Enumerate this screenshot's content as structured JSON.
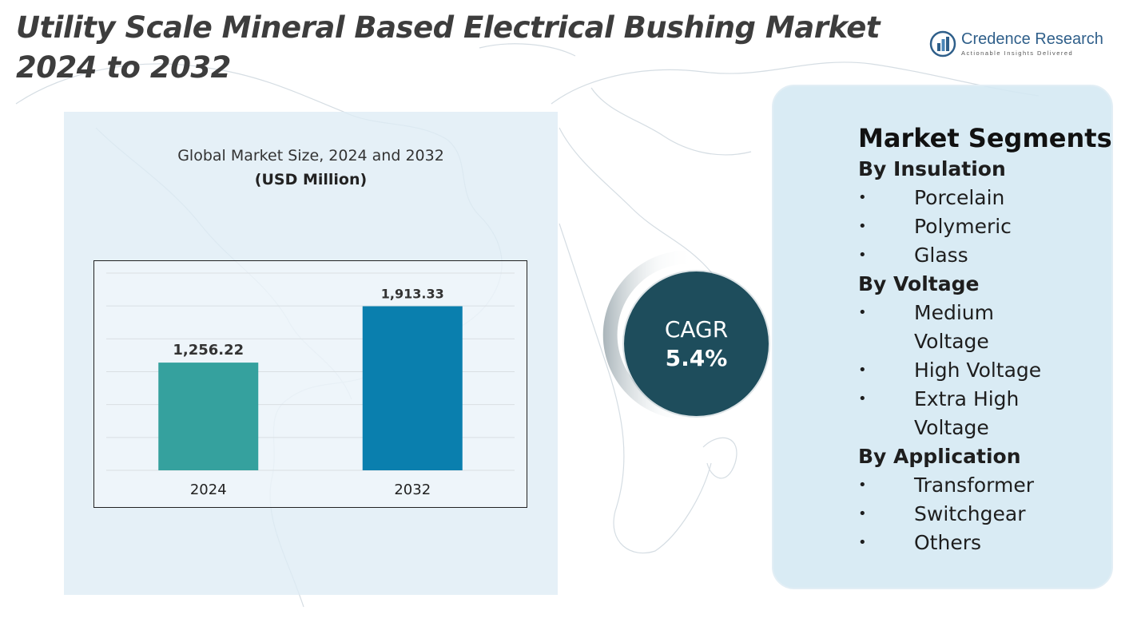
{
  "title": {
    "line1": "Utility Scale Mineral Based Electrical Bushing Market",
    "line2": "2024 to 2032"
  },
  "logo": {
    "name": "Credence Research",
    "tagline": "Actionable Insights Delivered",
    "brand_color": "#2f5f8a"
  },
  "chart_data": {
    "type": "bar",
    "title": "Global Market Size, 2024 and 2032",
    "subtitle": "(USD Million)",
    "categories": [
      "2024",
      "2032"
    ],
    "values": [
      1256.22,
      1913.33
    ],
    "value_labels": [
      "1,256.22",
      "1,913.33"
    ],
    "colors": [
      "#35a19e",
      "#0a7fae"
    ],
    "ylim": [
      0,
      2300
    ],
    "grid": true,
    "legend": "none"
  },
  "cagr": {
    "label": "CAGR",
    "value": "5.4%",
    "color": "#1e4d5c"
  },
  "segments": {
    "title": "Market Segments",
    "groups": [
      {
        "heading": "By Insulation",
        "items": [
          "Porcelain",
          "Polymeric",
          "Glass"
        ]
      },
      {
        "heading": "By Voltage",
        "items": [
          "Medium Voltage",
          "High Voltage",
          "Extra High Voltage"
        ]
      },
      {
        "heading": "By Application",
        "items": [
          "Transformer",
          "Switchgear",
          "Others"
        ]
      }
    ],
    "bullet": "•"
  }
}
